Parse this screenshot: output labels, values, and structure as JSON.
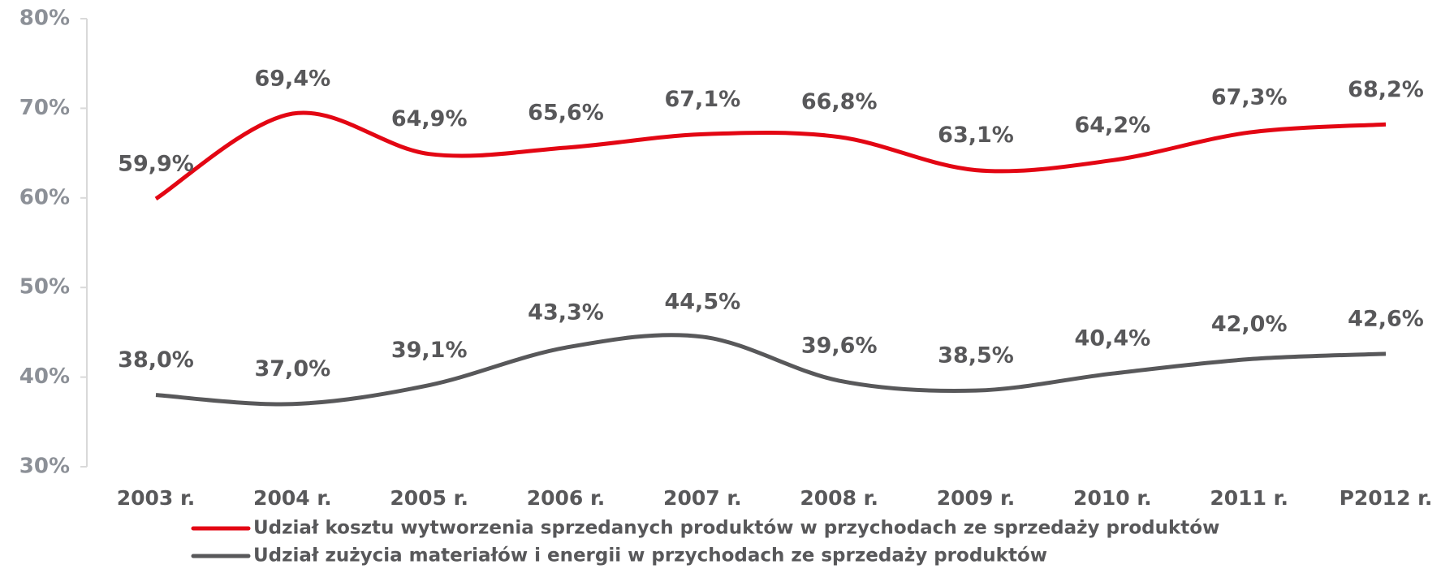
{
  "chart_data": {
    "type": "line",
    "categories": [
      "2003 r.",
      "2004 r.",
      "2005 r.",
      "2006 r.",
      "2007 r.",
      "2008 r.",
      "2009 r.",
      "2010 r.",
      "2011 r.",
      "P2012 r."
    ],
    "series": [
      {
        "name": "Udział kosztu wytworzenia sprzedanych produktów w przychodach ze sprzedaży produktów",
        "color": "#e30613",
        "values": [
          59.9,
          69.4,
          64.9,
          65.6,
          67.1,
          66.8,
          63.1,
          64.2,
          67.3,
          68.2
        ],
        "value_labels": [
          "59,9%",
          "69,4%",
          "64,9%",
          "65,6%",
          "67,1%",
          "66,8%",
          "63,1%",
          "64,2%",
          "67,3%",
          "68,2%"
        ]
      },
      {
        "name": "Udział zużycia materiałów i energii w przychodach ze sprzedaży produktów",
        "color": "#58585a",
        "values": [
          38.0,
          37.0,
          39.1,
          43.3,
          44.5,
          39.6,
          38.5,
          40.4,
          42.0,
          42.6
        ],
        "value_labels": [
          "38,0%",
          "37,0%",
          "39,1%",
          "43,3%",
          "44,5%",
          "39,6%",
          "38,5%",
          "40,4%",
          "42,0%",
          "42,6%"
        ]
      }
    ],
    "ylim": [
      30,
      80
    ],
    "yticks": [
      {
        "value": 30,
        "label": "30%"
      },
      {
        "value": 40,
        "label": "40%"
      },
      {
        "value": 50,
        "label": "50%"
      },
      {
        "value": 60,
        "label": "60%"
      },
      {
        "value": 70,
        "label": "70%"
      },
      {
        "value": 80,
        "label": "80%"
      }
    ],
    "grid": false,
    "legend": "bottom"
  }
}
